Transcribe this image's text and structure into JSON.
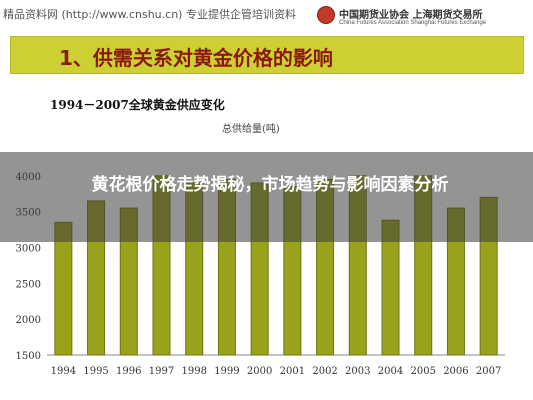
{
  "page": {
    "watermark": "精品资料网 (http://www.cnshu.cn) 专业提供企管培训资料",
    "logo_cn": "中国期货业协会  上海期货交易所",
    "logo_en": "China Futures Association   Shanghai Futures Exchange",
    "header_title": "1、供需关系对黄金价格的影响",
    "overlay_text": "黄花根价格走势揭秘，市场趋势与影响因素分析",
    "colors": {
      "banner": "#ccd032",
      "title_red": "#8a1a0e",
      "bar_fill": "#9aa21c",
      "bar_stroke": "#6e7414"
    }
  },
  "chart_data": {
    "type": "bar",
    "title": "1994－2007全球黄金供应变化",
    "series": [
      {
        "name": "总供给量(吨)",
        "values": [
          3350,
          3650,
          3550,
          4000,
          3900,
          3950,
          3900,
          3850,
          3950,
          4000,
          3380,
          4000,
          3550,
          3700
        ]
      }
    ],
    "categories": [
      "1994",
      "1995",
      "1996",
      "1997",
      "1998",
      "1999",
      "2000",
      "2001",
      "2002",
      "2003",
      "2004",
      "2005",
      "2006",
      "2007"
    ],
    "yticks": [
      1500,
      2000,
      2500,
      3000,
      3500,
      4000
    ],
    "ylim": [
      1500,
      4500
    ],
    "grid": false
  }
}
